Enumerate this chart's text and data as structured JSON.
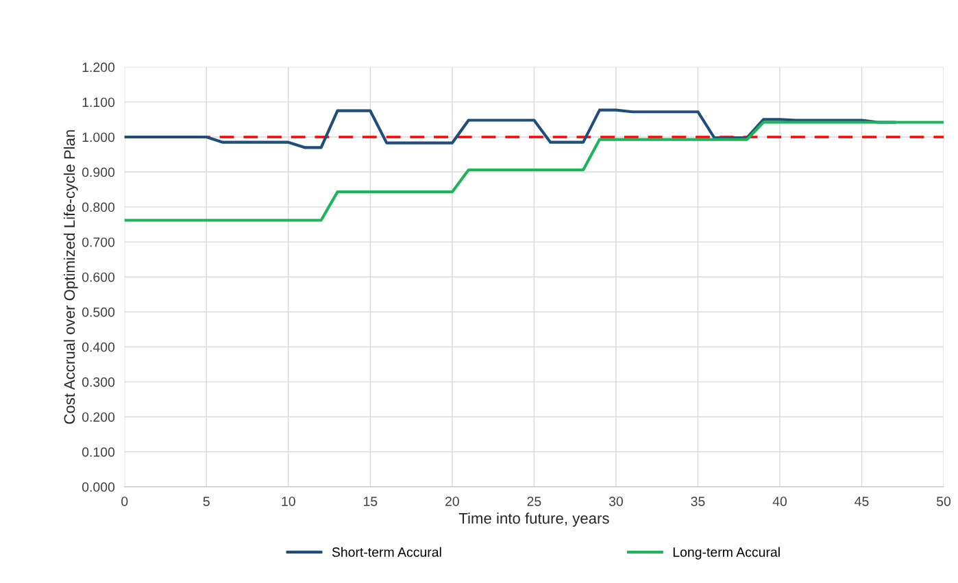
{
  "chart_data": {
    "type": "line",
    "xlabel": "Time into future, years",
    "ylabel": "Cost Accrual over Optimized Life-cycle Plan",
    "x": [
      0,
      1,
      2,
      3,
      4,
      5,
      6,
      7,
      8,
      9,
      10,
      11,
      12,
      13,
      14,
      15,
      16,
      17,
      18,
      19,
      20,
      21,
      22,
      23,
      24,
      25,
      26,
      27,
      28,
      29,
      30,
      31,
      32,
      33,
      34,
      35,
      36,
      37,
      38,
      39,
      40,
      41,
      42,
      43,
      44,
      45,
      46,
      47,
      48,
      49,
      50
    ],
    "series": [
      {
        "name": "Short-term Accural",
        "color": "#1f4e79",
        "values": [
          1.0,
          1.0,
          1.0,
          1.0,
          1.0,
          1.0,
          0.985,
          0.985,
          0.985,
          0.985,
          0.985,
          0.97,
          0.97,
          1.075,
          1.075,
          1.075,
          0.983,
          0.983,
          0.983,
          0.983,
          0.983,
          1.048,
          1.048,
          1.048,
          1.048,
          1.048,
          0.985,
          0.985,
          0.985,
          1.077,
          1.077,
          1.072,
          1.072,
          1.072,
          1.072,
          1.072,
          0.998,
          0.998,
          0.998,
          1.05,
          1.05,
          1.048,
          1.048,
          1.048,
          1.048,
          1.048,
          1.042,
          1.042,
          null,
          null,
          null
        ]
      },
      {
        "name": "Long-term Accural",
        "color": "#1fb35a",
        "values": [
          0.762,
          0.762,
          0.762,
          0.762,
          0.762,
          0.762,
          0.762,
          0.762,
          0.762,
          0.762,
          0.762,
          0.762,
          0.762,
          0.843,
          0.843,
          0.843,
          0.843,
          0.843,
          0.843,
          0.843,
          0.843,
          0.906,
          0.906,
          0.906,
          0.906,
          0.906,
          0.906,
          0.906,
          0.906,
          0.993,
          0.993,
          0.993,
          0.993,
          0.993,
          0.993,
          0.993,
          0.993,
          0.993,
          0.993,
          1.042,
          1.042,
          1.042,
          1.042,
          1.042,
          1.042,
          1.042,
          1.042,
          1.042,
          1.042,
          1.042,
          1.042
        ]
      }
    ],
    "ref_lines": [
      {
        "axis": "y",
        "value": 1.0,
        "color": "#ff0000",
        "line_style": "dashed"
      }
    ],
    "xlim": [
      0,
      50
    ],
    "xticks": [
      0,
      5,
      10,
      15,
      20,
      25,
      30,
      35,
      40,
      45,
      50
    ],
    "ylim": [
      0,
      1.2
    ],
    "yticks": [
      {
        "value": 0,
        "label": "0.000"
      },
      {
        "value": 0.1,
        "label": "0.100"
      },
      {
        "value": 0.2,
        "label": "0.200"
      },
      {
        "value": 0.3,
        "label": "0.300"
      },
      {
        "value": 0.4,
        "label": "0.400"
      },
      {
        "value": 0.5,
        "label": "0.500"
      },
      {
        "value": 0.6,
        "label": "0.600"
      },
      {
        "value": 0.7,
        "label": "0.700"
      },
      {
        "value": 0.8,
        "label": "0.800"
      },
      {
        "value": 0.9,
        "label": "0.900"
      },
      {
        "value": 1.0,
        "label": "1.000"
      },
      {
        "value": 1.1,
        "label": "1.100"
      },
      {
        "value": 1.2,
        "label": "1.200"
      }
    ],
    "grid": true,
    "legend": "bottom",
    "marker": "none",
    "line_style": "solid"
  }
}
